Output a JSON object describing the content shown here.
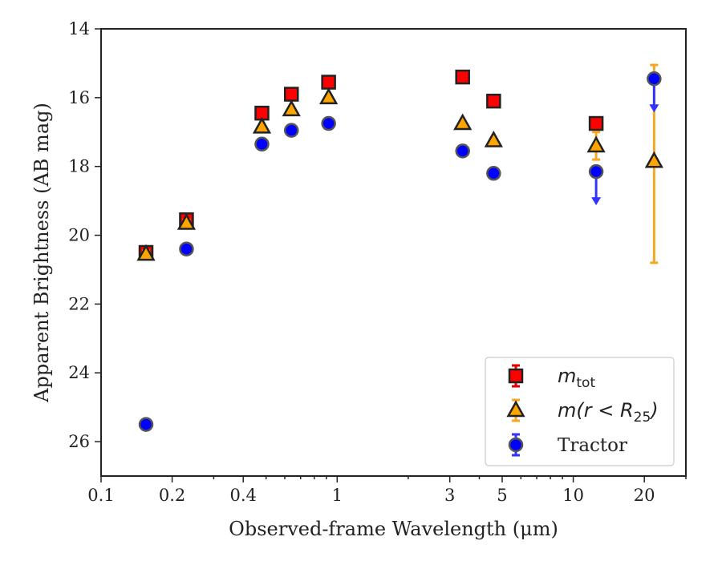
{
  "chart_data": {
    "type": "scatter",
    "xscale": "log",
    "xlim": [
      0.1,
      30
    ],
    "ylim": [
      27,
      14
    ],
    "y_inverted": true,
    "xlabel": "Observed-frame Wavelength (μm)",
    "ylabel": "Apparent Brightness (AB mag)",
    "xticks": [
      {
        "value": 0.1,
        "label": "0.1"
      },
      {
        "value": 0.2,
        "label": "0.2"
      },
      {
        "value": 0.4,
        "label": "0.4"
      },
      {
        "value": 1,
        "label": "1"
      },
      {
        "value": 3,
        "label": "3"
      },
      {
        "value": 5,
        "label": "5"
      },
      {
        "value": 10,
        "label": "10"
      },
      {
        "value": 20,
        "label": "20"
      }
    ],
    "yticks": [
      {
        "value": 14,
        "label": "14"
      },
      {
        "value": 16,
        "label": "16"
      },
      {
        "value": 18,
        "label": "18"
      },
      {
        "value": 20,
        "label": "20"
      },
      {
        "value": 22,
        "label": "22"
      },
      {
        "value": 24,
        "label": "24"
      },
      {
        "value": 26,
        "label": "26"
      }
    ],
    "legend_position": "lower-right",
    "series": [
      {
        "name": "m_tot",
        "legend_main": "m",
        "legend_sub": "tot",
        "marker": "square",
        "fill": "#ff0000",
        "edge": "#222222",
        "errcolor": "#e00000",
        "points": [
          {
            "x": 0.155,
            "y": 20.5,
            "err": 0.1
          },
          {
            "x": 0.23,
            "y": 19.55,
            "err": 0.1
          },
          {
            "x": 0.48,
            "y": 16.45,
            "err": 0.05
          },
          {
            "x": 0.64,
            "y": 15.9,
            "err": 0.05
          },
          {
            "x": 0.92,
            "y": 15.55,
            "err": 0.05
          },
          {
            "x": 3.4,
            "y": 15.4,
            "err": 0.05
          },
          {
            "x": 4.6,
            "y": 16.1,
            "err": 0.05
          },
          {
            "x": 12.5,
            "y": 16.75,
            "err": 0.05
          }
        ]
      },
      {
        "name": "m(r < R_25)",
        "legend_main": "m(r < R",
        "legend_sub": "25",
        "legend_tail": ")",
        "marker": "triangle",
        "fill": "#ffa500",
        "edge": "#222222",
        "errcolor": "#f5a623",
        "points": [
          {
            "x": 0.155,
            "y": 20.55,
            "err": 0.1
          },
          {
            "x": 0.23,
            "y": 19.65,
            "err": 0.1
          },
          {
            "x": 0.48,
            "y": 16.85,
            "err": 0.05
          },
          {
            "x": 0.64,
            "y": 16.35,
            "err": 0.05
          },
          {
            "x": 0.92,
            "y": 16.0,
            "err": 0.05
          },
          {
            "x": 3.4,
            "y": 16.75,
            "err": 0.05
          },
          {
            "x": 4.6,
            "y": 17.25,
            "err": 0.05
          },
          {
            "x": 12.5,
            "y": 17.4,
            "err": 0.4
          },
          {
            "x": 22,
            "y": 17.85,
            "err_lo": 2.8,
            "err_hi": 2.95
          }
        ]
      },
      {
        "name": "Tractor",
        "legend_main": "Tractor",
        "marker": "circle",
        "fill": "#0000ff",
        "edge": "#555555",
        "errcolor": "#3333ff",
        "points": [
          {
            "x": 0.155,
            "y": 25.5,
            "err": 0.05
          },
          {
            "x": 0.23,
            "y": 20.4,
            "err": 0.05
          },
          {
            "x": 0.48,
            "y": 17.35,
            "err": 0.05
          },
          {
            "x": 0.64,
            "y": 16.95,
            "err": 0.05
          },
          {
            "x": 0.92,
            "y": 16.75,
            "err": 0.05
          },
          {
            "x": 3.4,
            "y": 17.55,
            "err": 0.05
          },
          {
            "x": 4.6,
            "y": 18.2,
            "err": 0.05
          },
          {
            "x": 12.5,
            "y": 18.15,
            "err": 0.05,
            "upper_limit": true
          },
          {
            "x": 22,
            "y": 15.45,
            "err": 0.05,
            "upper_limit": true
          }
        ]
      }
    ]
  }
}
